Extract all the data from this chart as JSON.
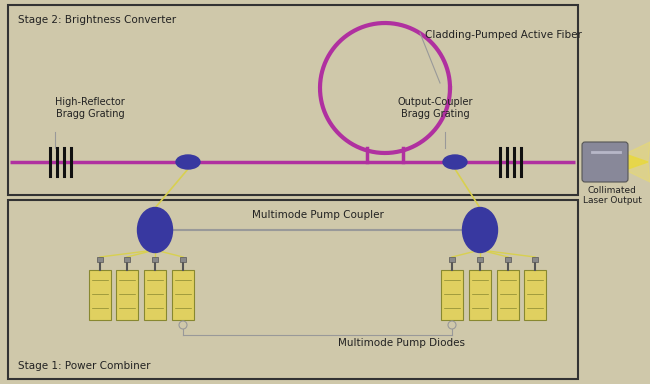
{
  "bg_color": "#cfc8aa",
  "fiber_color": "#b030a0",
  "fiber_lw": 2.5,
  "grating_color": "#111111",
  "coupler_color": "#3838a0",
  "pump_wire_color": "#d8d050",
  "diode_color": "#e0d060",
  "diode_edge": "#888830",
  "gray_line": "#999999",
  "dark_text": "#222222",
  "stage2_label": "Stage 2: Brightness Converter",
  "stage1_label": "Stage 1: Power Combiner",
  "label_hr": "High-Reflector\nBragg Grating",
  "label_oc": "Output-Coupler\nBragg Grating",
  "label_fiber": "Cladding-Pumped Active Fiber",
  "label_collimated": "Collimated\nLaser Output",
  "label_mpc": "Multimode Pump Coupler",
  "label_mpd": "Multimode Pump Diodes"
}
